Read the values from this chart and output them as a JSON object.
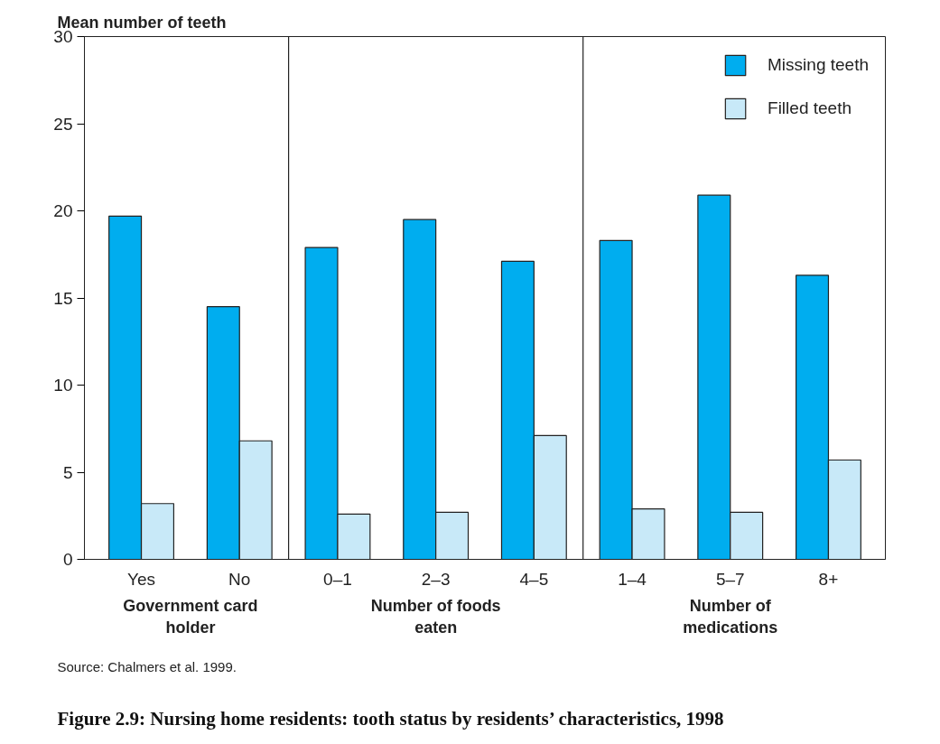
{
  "chart_data": {
    "type": "bar",
    "title": "Figure 2.9:  Nursing home residents: tooth status by residents’ characteristics, 1998",
    "ylabel": "Mean number of teeth",
    "categories": [
      "Yes",
      "No",
      "0–1",
      "2–3",
      "4–5",
      "1–4",
      "5–7",
      "8+"
    ],
    "series": [
      {
        "name": "Missing teeth",
        "color": "#00adef",
        "values": [
          19.7,
          14.5,
          17.9,
          19.5,
          17.1,
          18.3,
          20.9,
          16.3
        ]
      },
      {
        "name": "Filled teeth",
        "color": "#c8e9f8",
        "values": [
          3.2,
          6.8,
          2.6,
          2.7,
          7.1,
          2.9,
          2.7,
          5.7
        ]
      }
    ],
    "ylim": [
      0,
      30
    ],
    "yticks": [
      0,
      5,
      10,
      15,
      20,
      25,
      30
    ],
    "grid": false,
    "legend": "top right",
    "annotations": [
      "Government card holder",
      "Number of foods eaten",
      "Number of medications",
      "Source: Chalmers et al. 1999."
    ]
  }
}
